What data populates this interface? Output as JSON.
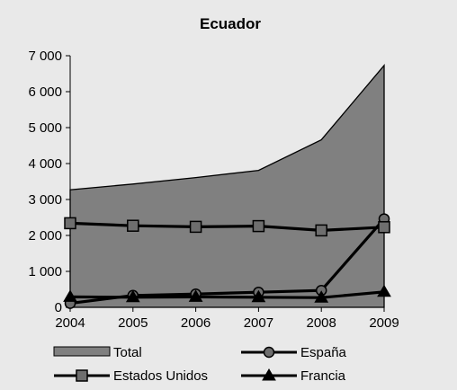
{
  "chart_data": {
    "type": "area+line",
    "title": "Ecuador",
    "xlabel": "",
    "ylabel": "",
    "categories": [
      "2004",
      "2005",
      "2006",
      "2007",
      "2008",
      "2009"
    ],
    "ylim": [
      0,
      7000
    ],
    "yticks": [
      0,
      1000,
      2000,
      3000,
      4000,
      5000,
      6000,
      7000
    ],
    "ytick_labels": [
      "0",
      "1 000",
      "2 000",
      "3 000",
      "4 000",
      "5 000",
      "6 000",
      "7 000"
    ],
    "grid": false,
    "legend_position": "bottom",
    "series": [
      {
        "name": "Total",
        "type": "area",
        "marker": "none",
        "color": "#808080",
        "values": [
          3270,
          3430,
          3610,
          3810,
          4660,
          6730
        ]
      },
      {
        "name": "España",
        "type": "line",
        "marker": "circle",
        "color": "#000000",
        "values": [
          110,
          330,
          370,
          420,
          470,
          2460
        ]
      },
      {
        "name": "Estados Unidos",
        "type": "line",
        "marker": "square",
        "color": "#000000",
        "values": [
          2340,
          2270,
          2240,
          2260,
          2140,
          2230
        ]
      },
      {
        "name": "Francia",
        "type": "line",
        "marker": "triangle",
        "color": "#000000",
        "values": [
          290,
          280,
          290,
          280,
          270,
          430
        ]
      }
    ]
  }
}
